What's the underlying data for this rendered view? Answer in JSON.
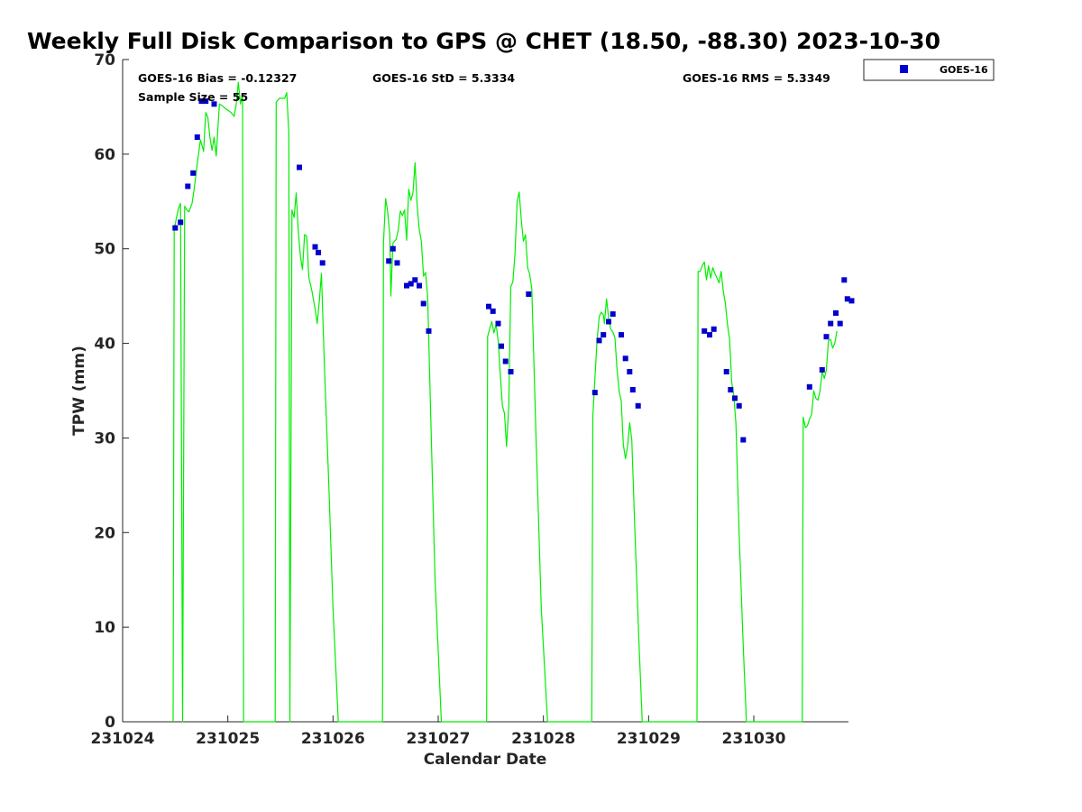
{
  "chart_data": {
    "type": "scatter",
    "title": "Weekly Full Disk Comparison to GPS @ CHET (18.50, -88.30) 2023-10-30",
    "xlabel": "Calendar Date",
    "ylabel": "TPW (mm)",
    "xlim": [
      231024,
      231030.9
    ],
    "ylim": [
      0,
      70
    ],
    "x_ticks": [
      231024,
      231025,
      231026,
      231027,
      231028,
      231029,
      231030
    ],
    "x_tick_labels": [
      "231024",
      "231025",
      "231026",
      "231027",
      "231028",
      "231029",
      "231030"
    ],
    "y_ticks": [
      0,
      10,
      20,
      30,
      40,
      50,
      60,
      70
    ],
    "y_tick_labels": [
      "0",
      "10",
      "20",
      "30",
      "40",
      "50",
      "60",
      "70"
    ],
    "grid": false,
    "legend_position": "top-right, outside plot",
    "stats": {
      "bias": "GOES-16 Bias = -0.12327",
      "std": "GOES-16 StD = 5.3334",
      "rms": "GOES-16 RMS = 5.3349",
      "sample": "Sample Size = 55"
    },
    "series": [
      {
        "name": "GOES-16",
        "kind": "markers",
        "color": "#0000cc",
        "points": [
          [
            231024.5,
            52.2
          ],
          [
            231024.55,
            52.8
          ],
          [
            231024.62,
            56.6
          ],
          [
            231024.67,
            58.0
          ],
          [
            231024.71,
            61.8
          ],
          [
            231024.75,
            65.6
          ],
          [
            231024.79,
            65.6
          ],
          [
            231024.87,
            65.3
          ],
          [
            231025.68,
            58.6
          ],
          [
            231025.83,
            50.2
          ],
          [
            231025.86,
            49.6
          ],
          [
            231025.9,
            48.5
          ],
          [
            231026.53,
            48.7
          ],
          [
            231026.57,
            50.0
          ],
          [
            231026.61,
            48.5
          ],
          [
            231026.7,
            46.1
          ],
          [
            231026.74,
            46.3
          ],
          [
            231026.78,
            46.7
          ],
          [
            231026.82,
            46.1
          ],
          [
            231026.86,
            44.2
          ],
          [
            231026.91,
            41.3
          ],
          [
            231027.48,
            43.9
          ],
          [
            231027.52,
            43.4
          ],
          [
            231027.57,
            42.1
          ],
          [
            231027.6,
            39.7
          ],
          [
            231027.64,
            38.1
          ],
          [
            231027.69,
            37.0
          ],
          [
            231027.86,
            45.2
          ],
          [
            231028.49,
            34.8
          ],
          [
            231028.53,
            40.3
          ],
          [
            231028.57,
            40.9
          ],
          [
            231028.62,
            42.3
          ],
          [
            231028.66,
            43.1
          ],
          [
            231028.74,
            40.9
          ],
          [
            231028.78,
            38.4
          ],
          [
            231028.82,
            37.0
          ],
          [
            231028.85,
            35.1
          ],
          [
            231028.9,
            33.4
          ],
          [
            231029.53,
            41.3
          ],
          [
            231029.58,
            40.9
          ],
          [
            231029.62,
            41.5
          ],
          [
            231029.74,
            37.0
          ],
          [
            231029.78,
            35.1
          ],
          [
            231029.82,
            34.2
          ],
          [
            231029.86,
            33.4
          ],
          [
            231029.9,
            29.8
          ],
          [
            231030.53,
            35.4
          ],
          [
            231030.65,
            37.2
          ],
          [
            231030.69,
            40.7
          ],
          [
            231030.73,
            42.1
          ],
          [
            231030.78,
            43.2
          ],
          [
            231030.82,
            42.1
          ],
          [
            231030.86,
            46.7
          ],
          [
            231030.89,
            44.7
          ],
          [
            231030.93,
            44.5
          ]
        ]
      },
      {
        "kind": "line",
        "color": "#00ee00",
        "points": [
          [
            231024.48,
            0
          ],
          [
            231024.49,
            52.0
          ],
          [
            231024.51,
            53.2
          ],
          [
            231024.53,
            54.2
          ],
          [
            231024.55,
            54.8
          ],
          [
            231024.57,
            0
          ],
          [
            231024.59,
            54.5
          ],
          [
            231024.61,
            54.1
          ],
          [
            231024.63,
            53.9
          ],
          [
            231024.66,
            54.8
          ],
          [
            231024.68,
            56.3
          ],
          [
            231024.71,
            59.0
          ],
          [
            231024.74,
            61.5
          ],
          [
            231024.77,
            60.3
          ],
          [
            231024.79,
            64.4
          ],
          [
            231024.81,
            63.9
          ],
          [
            231024.83,
            61.8
          ],
          [
            231024.85,
            60.4
          ],
          [
            231024.87,
            61.8
          ],
          [
            231024.89,
            59.8
          ],
          [
            231024.92,
            65.3
          ],
          [
            231024.95,
            65.1
          ],
          [
            231024.98,
            64.8
          ],
          [
            231025.03,
            64.4
          ],
          [
            231025.06,
            64.0
          ],
          [
            231025.08,
            65.3
          ],
          [
            231025.1,
            67.6
          ],
          [
            231025.12,
            65.3
          ],
          [
            231025.14,
            66.4
          ],
          [
            231025.15,
            0
          ],
          [
            231025.45,
            0
          ],
          [
            231025.46,
            65.5
          ],
          [
            231025.49,
            65.9
          ],
          [
            231025.54,
            65.9
          ],
          [
            231025.56,
            66.5
          ],
          [
            231025.58,
            62.3
          ],
          [
            231025.59,
            0
          ],
          [
            231025.61,
            54.1
          ],
          [
            231025.63,
            53.3
          ],
          [
            231025.65,
            55.9
          ],
          [
            231025.67,
            51.9
          ],
          [
            231025.69,
            49.2
          ],
          [
            231025.71,
            47.8
          ],
          [
            231025.73,
            51.5
          ],
          [
            231025.75,
            51.3
          ],
          [
            231025.77,
            47.0
          ],
          [
            231025.8,
            45.5
          ],
          [
            231025.83,
            43.6
          ],
          [
            231025.85,
            42.1
          ],
          [
            231025.87,
            44.5
          ],
          [
            231025.89,
            47.4
          ],
          [
            231025.92,
            37.0
          ],
          [
            231025.96,
            25.0
          ],
          [
            231026.0,
            12.0
          ],
          [
            231026.05,
            0
          ],
          [
            231026.47,
            0
          ],
          [
            231026.48,
            50.6
          ],
          [
            231026.5,
            55.3
          ],
          [
            231026.52,
            53.9
          ],
          [
            231026.54,
            51.4
          ],
          [
            231026.55,
            45.0
          ],
          [
            231026.57,
            50.6
          ],
          [
            231026.6,
            51.0
          ],
          [
            231026.62,
            52.0
          ],
          [
            231026.64,
            54.0
          ],
          [
            231026.66,
            53.5
          ],
          [
            231026.68,
            54.1
          ],
          [
            231026.7,
            50.9
          ],
          [
            231026.72,
            56.3
          ],
          [
            231026.74,
            55.1
          ],
          [
            231026.76,
            55.9
          ],
          [
            231026.78,
            59.1
          ],
          [
            231026.8,
            54.5
          ],
          [
            231026.82,
            52.0
          ],
          [
            231026.84,
            50.8
          ],
          [
            231026.86,
            47.1
          ],
          [
            231026.88,
            47.5
          ],
          [
            231026.9,
            44.9
          ],
          [
            231026.93,
            32.0
          ],
          [
            231026.97,
            15.0
          ],
          [
            231027.03,
            0
          ],
          [
            231027.46,
            0
          ],
          [
            231027.47,
            40.7
          ],
          [
            231027.49,
            41.6
          ],
          [
            231027.51,
            42.3
          ],
          [
            231027.53,
            41.1
          ],
          [
            231027.55,
            42.0
          ],
          [
            231027.57,
            40.3
          ],
          [
            231027.59,
            36.8
          ],
          [
            231027.61,
            33.4
          ],
          [
            231027.63,
            32.6
          ],
          [
            231027.65,
            29.1
          ],
          [
            231027.67,
            33.2
          ],
          [
            231027.69,
            46.0
          ],
          [
            231027.71,
            46.5
          ],
          [
            231027.73,
            49.5
          ],
          [
            231027.75,
            55.0
          ],
          [
            231027.77,
            56.0
          ],
          [
            231027.79,
            53.0
          ],
          [
            231027.81,
            50.8
          ],
          [
            231027.83,
            51.5
          ],
          [
            231027.85,
            48.0
          ],
          [
            231027.87,
            47.3
          ],
          [
            231027.89,
            45.8
          ],
          [
            231027.93,
            30.0
          ],
          [
            231027.98,
            12.0
          ],
          [
            231028.04,
            0
          ],
          [
            231028.46,
            0
          ],
          [
            231028.47,
            32.3
          ],
          [
            231028.49,
            36.3
          ],
          [
            231028.51,
            40.3
          ],
          [
            231028.53,
            42.8
          ],
          [
            231028.55,
            43.3
          ],
          [
            231028.57,
            43.0
          ],
          [
            231028.58,
            42.1
          ],
          [
            231028.6,
            44.7
          ],
          [
            231028.62,
            42.7
          ],
          [
            231028.64,
            41.5
          ],
          [
            231028.66,
            41.2
          ],
          [
            231028.68,
            40.6
          ],
          [
            231028.7,
            37.3
          ],
          [
            231028.72,
            34.9
          ],
          [
            231028.74,
            33.9
          ],
          [
            231028.76,
            29.3
          ],
          [
            231028.78,
            27.8
          ],
          [
            231028.8,
            29.1
          ],
          [
            231028.82,
            31.6
          ],
          [
            231028.84,
            29.8
          ],
          [
            231028.87,
            20.0
          ],
          [
            231028.91,
            8.0
          ],
          [
            231028.94,
            0
          ],
          [
            231029.46,
            0
          ],
          [
            231029.47,
            47.6
          ],
          [
            231029.49,
            47.6
          ],
          [
            231029.51,
            48.2
          ],
          [
            231029.53,
            48.6
          ],
          [
            231029.55,
            46.7
          ],
          [
            231029.57,
            48.2
          ],
          [
            231029.59,
            46.9
          ],
          [
            231029.61,
            48.0
          ],
          [
            231029.63,
            47.4
          ],
          [
            231029.65,
            46.9
          ],
          [
            231029.67,
            46.4
          ],
          [
            231029.69,
            47.6
          ],
          [
            231029.71,
            45.5
          ],
          [
            231029.73,
            44.2
          ],
          [
            231029.75,
            42.0
          ],
          [
            231029.77,
            40.4
          ],
          [
            231029.79,
            35.9
          ],
          [
            231029.81,
            34.5
          ],
          [
            231029.83,
            31.5
          ],
          [
            231029.86,
            20.0
          ],
          [
            231029.9,
            8.0
          ],
          [
            231029.93,
            0
          ],
          [
            231030.46,
            0
          ],
          [
            231030.47,
            32.2
          ],
          [
            231030.49,
            31.1
          ],
          [
            231030.51,
            31.3
          ],
          [
            231030.53,
            32.0
          ],
          [
            231030.55,
            32.5
          ],
          [
            231030.57,
            35.0
          ],
          [
            231030.59,
            34.2
          ],
          [
            231030.61,
            34.0
          ],
          [
            231030.63,
            35.0
          ],
          [
            231030.65,
            37.0
          ],
          [
            231030.67,
            36.3
          ],
          [
            231030.69,
            37.2
          ],
          [
            231030.71,
            40.3
          ],
          [
            231030.73,
            40.4
          ],
          [
            231030.75,
            39.5
          ],
          [
            231030.77,
            40.0
          ],
          [
            231030.79,
            41.3
          ]
        ]
      }
    ]
  }
}
